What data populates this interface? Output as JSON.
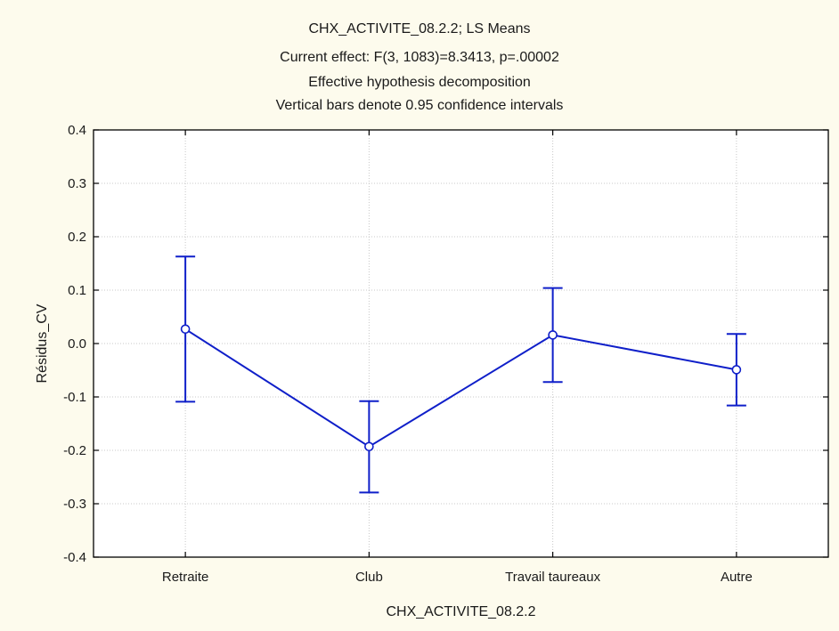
{
  "chart_data": {
    "type": "line",
    "title": "CHX_ACTIVITE_08.2.2; LS Means",
    "subtitles": [
      "Current effect: F(3, 1083)=8.3413, p=.00002",
      "Effective hypothesis decomposition",
      "Vertical bars denote 0.95 confidence intervals"
    ],
    "xlabel": "CHX_ACTIVITE_08.2.2",
    "ylabel": "Résidus_CV",
    "categories": [
      "Retraite",
      "Club",
      "Travail taureaux",
      "Autre"
    ],
    "series": [
      {
        "values": [
          0.027,
          -0.193,
          0.016,
          -0.049
        ],
        "ci_lower": [
          -0.109,
          -0.279,
          -0.072,
          -0.116
        ],
        "ci_upper": [
          0.163,
          -0.108,
          0.104,
          0.018
        ]
      }
    ],
    "ylim": [
      -0.4,
      0.4
    ],
    "yticks": [
      -0.4,
      -0.3,
      -0.2,
      -0.1,
      0.0,
      0.1,
      0.2,
      0.3,
      0.4
    ],
    "ytick_labels": [
      "-0.4",
      "-0.3",
      "-0.2",
      "-0.1",
      "0.0",
      "0.1",
      "0.2",
      "0.3",
      "0.4"
    ],
    "grid": true,
    "line_color": "#0f1fc9"
  }
}
